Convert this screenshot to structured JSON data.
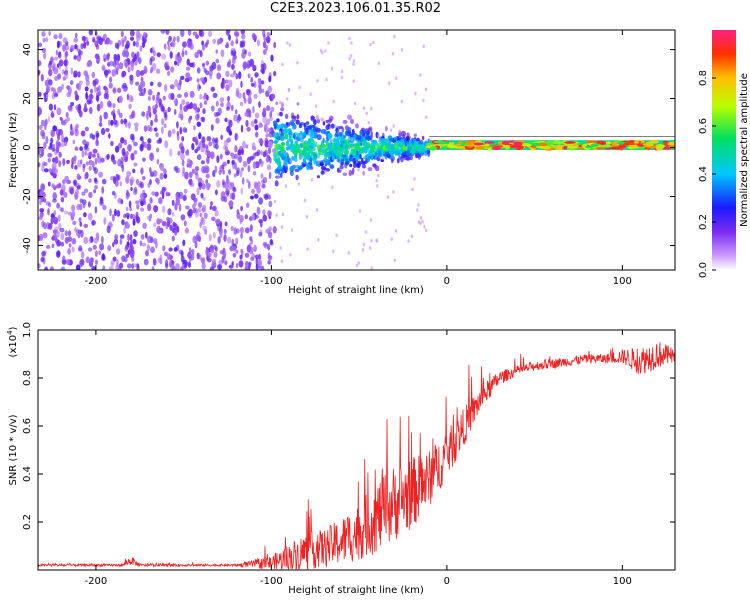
{
  "title": "C2E3.2023.106.01.35.R02",
  "colors": {
    "spectro_purple": "#7b2cf0",
    "snr_line": "#ee2222",
    "axis": "#000000"
  },
  "chart_data": [
    {
      "type": "heatmap",
      "title": "C2E3.2023.106.01.35.R02",
      "xlabel": "Height of straight line (km)",
      "ylabel": "Frequency (Hz)",
      "xlim": [
        -233,
        130
      ],
      "ylim": [
        -50,
        48
      ],
      "xticks": [
        -200,
        -100,
        0,
        100
      ],
      "xtick_labels": [
        "-200",
        "-100",
        "0",
        "100"
      ],
      "yticks": [
        -40,
        -20,
        0,
        20,
        40
      ],
      "ytick_labels": [
        "-40",
        "-20",
        "0",
        "20",
        "40"
      ],
      "regions": [
        {
          "x_from": -233,
          "x_to": -98,
          "description": "Broadband noise across all frequencies, amplitude ~0.1-0.2"
        },
        {
          "x_from": -98,
          "x_to": -10,
          "center_hz": 0,
          "spread_hz": [
            15,
            3
          ],
          "description": "Carrier emerging, amplitude 0.2-0.5"
        },
        {
          "x_from": -10,
          "x_to": 130,
          "center_hz": 1,
          "spread_hz": 2,
          "description": "Strong tone near 0 Hz, amplitude 0.6-1.0"
        }
      ],
      "colorbar": {
        "label": "Normalized spectral amplitude",
        "range": [
          0,
          1
        ],
        "ticks": [
          0.0,
          0.2,
          0.4,
          0.6,
          0.8
        ],
        "tick_labels": [
          "0.0",
          "0.2",
          "0.4",
          "0.6",
          "0.8"
        ]
      }
    },
    {
      "type": "line",
      "xlabel": "Height of straight line (km)",
      "ylabel": "SNR (10 * v/v)",
      "yscale_label_base": "(x10",
      "yscale_label_exp": "4",
      "yscale_label_close": ")",
      "xlim": [
        -233,
        130
      ],
      "ylim": [
        0,
        1.0
      ],
      "xticks": [
        -200,
        -100,
        0,
        100
      ],
      "xtick_labels": [
        "-200",
        "-100",
        "0",
        "100"
      ],
      "yticks": [
        0.2,
        0.4,
        0.6,
        0.8,
        1.0
      ],
      "ytick_labels": [
        "0.2",
        "0.4",
        "0.6",
        "0.8",
        "1.0"
      ],
      "series": [
        {
          "name": "SNR",
          "x": [
            -233,
            -200,
            -185,
            -180,
            -175,
            -150,
            -120,
            -100,
            -90,
            -80,
            -70,
            -60,
            -50,
            -40,
            -30,
            -20,
            -10,
            0,
            10,
            20,
            30,
            40,
            50,
            60,
            70,
            80,
            90,
            100,
            110,
            120,
            130
          ],
          "y": [
            0.02,
            0.02,
            0.02,
            0.04,
            0.02,
            0.02,
            0.02,
            0.03,
            0.05,
            0.08,
            0.09,
            0.12,
            0.16,
            0.22,
            0.28,
            0.32,
            0.38,
            0.48,
            0.6,
            0.72,
            0.8,
            0.83,
            0.85,
            0.86,
            0.87,
            0.88,
            0.88,
            0.89,
            0.87,
            0.9,
            0.89
          ],
          "noise_amp": [
            0.005,
            0.005,
            0.005,
            0.02,
            0.005,
            0.005,
            0.005,
            0.03,
            0.06,
            0.08,
            0.08,
            0.1,
            0.12,
            0.15,
            0.16,
            0.15,
            0.12,
            0.1,
            0.08,
            0.05,
            0.03,
            0.02,
            0.02,
            0.02,
            0.02,
            0.02,
            0.02,
            0.03,
            0.06,
            0.06,
            0.03
          ]
        }
      ]
    }
  ]
}
